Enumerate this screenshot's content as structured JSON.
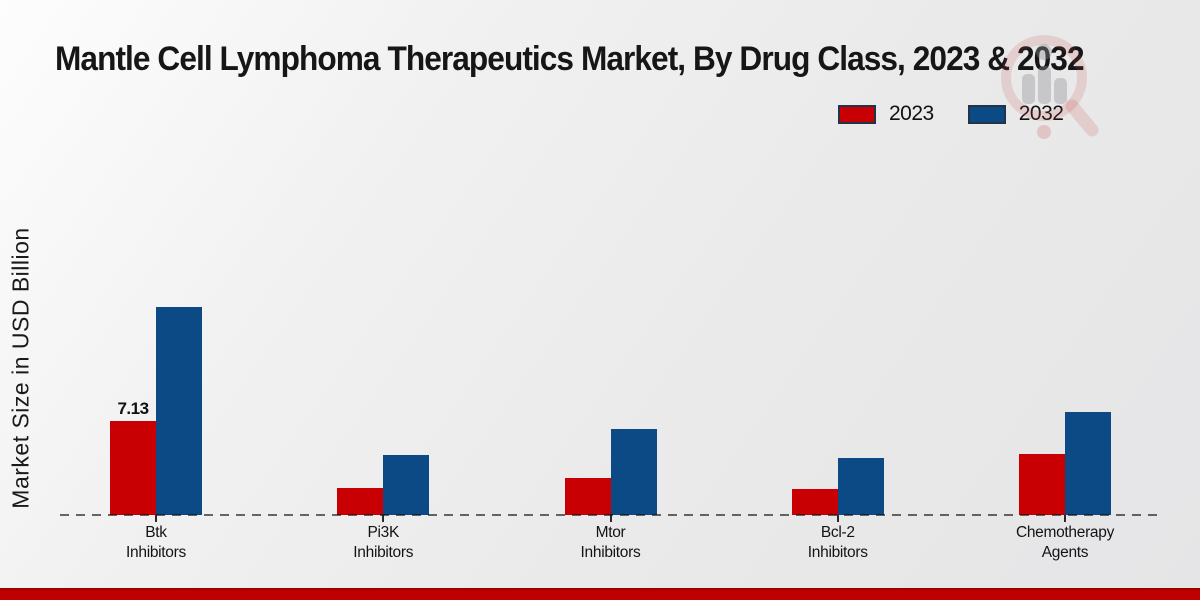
{
  "page": {
    "title": "Mantle Cell Lymphoma Therapeutics Market, By Drug Class, 2023 & 2032",
    "ylabel": "Market Size in USD Billion",
    "footer_color": "#be0000",
    "background_color": "#ebebeb",
    "watermark_icon": "magnifier-bar-chart-logo"
  },
  "legend": [
    {
      "label": "2023",
      "color": "#c80003"
    },
    {
      "label": "2032",
      "color": "#0c4a85"
    }
  ],
  "chart_data": {
    "type": "bar",
    "title": "Mantle Cell Lymphoma Therapeutics Market, By Drug Class, 2023 & 2032",
    "xlabel": "",
    "ylabel": "Market Size in USD Billion",
    "categories": [
      "Btk Inhibitors",
      "Pi3K Inhibitors",
      "Mtor Inhibitors",
      "Bcl-2 Inhibitors",
      "Chemotherapy Agents"
    ],
    "series": [
      {
        "name": "2023",
        "color": "#c80003",
        "values": [
          7.13,
          2.05,
          2.8,
          2.0,
          4.6
        ]
      },
      {
        "name": "2032",
        "color": "#0c4a85",
        "values": [
          15.7,
          4.55,
          6.5,
          4.3,
          7.8
        ]
      }
    ],
    "data_labels": [
      {
        "series_index": 0,
        "category_index": 0,
        "text": "7.13"
      }
    ],
    "ylim": [
      0,
      16.5
    ],
    "grid": false,
    "axis_style": "dashed-baseline-only",
    "legend_position": "top-right"
  }
}
